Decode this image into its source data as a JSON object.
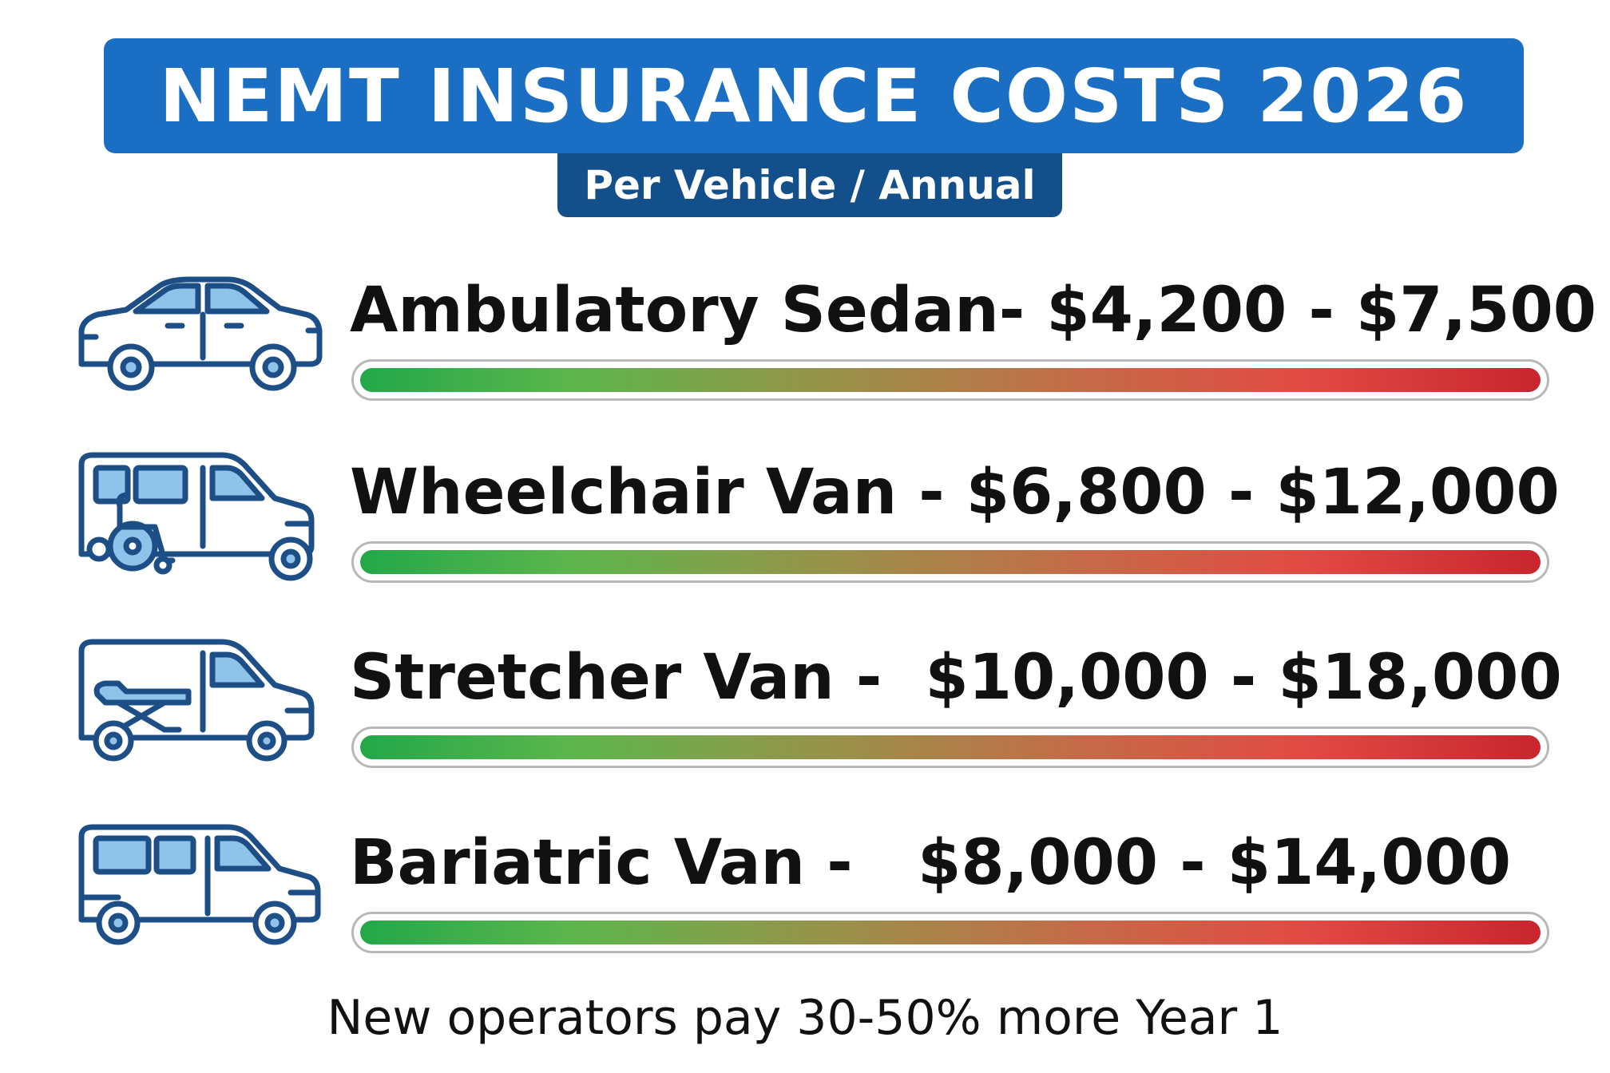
{
  "title": "NEMT INSURANCE COSTS 2026",
  "subtitle": "Per Vehicle / Annual",
  "rows": [
    {
      "label": "Ambulatory Sedan- $4,200 - $7,500",
      "icon": "sedan-icon"
    },
    {
      "label": "Wheelchair Van - $6,800 - $12,000",
      "icon": "wheelchair-van-icon"
    },
    {
      "label": "Stretcher Van -  $10,000 - $18,000",
      "icon": "stretcher-van-icon"
    },
    {
      "label": "Bariatric Van -   $8,000 - $14,000",
      "icon": "bariatric-van-icon"
    }
  ],
  "footnote": "New operators pay 30-50% more Year 1",
  "colors": {
    "banner": "#1a6fc4",
    "subtitle_badge": "#134f8a",
    "icon_stroke": "#1d4f86",
    "icon_window": "#8fc3ea",
    "bar_low": "#23a84a",
    "bar_high": "#c8262e"
  }
}
